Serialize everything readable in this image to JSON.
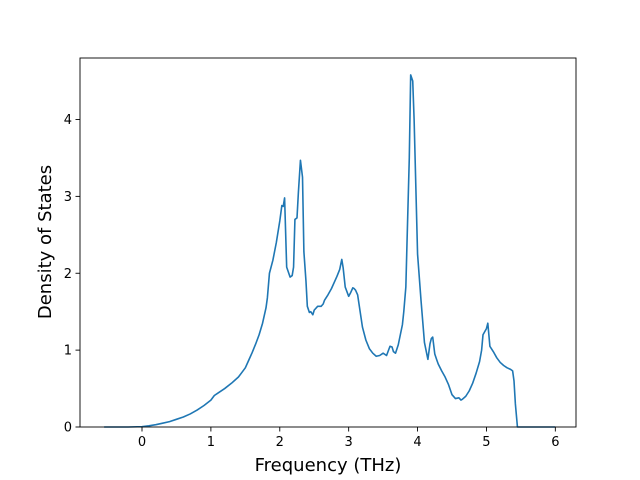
{
  "chart_data": {
    "type": "line",
    "xlabel": "Frequency (THz)",
    "ylabel": "Density of States",
    "xlim": [
      -0.9,
      6.3
    ],
    "ylim": [
      0,
      4.8
    ],
    "x_ticks": [
      0,
      1,
      2,
      3,
      4,
      5,
      6
    ],
    "y_ticks": [
      0,
      1,
      2,
      3,
      4
    ],
    "grid": false,
    "legend": "none",
    "line_color": "#1f77b4",
    "series": [
      {
        "x": [
          -0.55,
          -0.2,
          0.0,
          0.1,
          0.2,
          0.3,
          0.4,
          0.5,
          0.6,
          0.7,
          0.8,
          0.9,
          1.0,
          1.05,
          1.1,
          1.2,
          1.3,
          1.4,
          1.45,
          1.5,
          1.55,
          1.6,
          1.65,
          1.7,
          1.75,
          1.8,
          1.82,
          1.85,
          1.9,
          1.95,
          2.0,
          2.03,
          2.05,
          2.07,
          2.1,
          2.15,
          2.18,
          2.2,
          2.22,
          2.25,
          2.27,
          2.3,
          2.33,
          2.35,
          2.38,
          2.4,
          2.43,
          2.45,
          2.48,
          2.5,
          2.55,
          2.6,
          2.63,
          2.65,
          2.7,
          2.75,
          2.8,
          2.83,
          2.87,
          2.9,
          2.92,
          2.95,
          3.0,
          3.03,
          3.06,
          3.08,
          3.1,
          3.13,
          3.15,
          3.18,
          3.2,
          3.25,
          3.3,
          3.35,
          3.4,
          3.45,
          3.5,
          3.55,
          3.6,
          3.63,
          3.65,
          3.68,
          3.72,
          3.75,
          3.78,
          3.8,
          3.83,
          3.85,
          3.88,
          3.9,
          3.93,
          3.95,
          4.0,
          4.05,
          4.1,
          4.15,
          4.18,
          4.2,
          4.22,
          4.25,
          4.28,
          4.3,
          4.35,
          4.4,
          4.45,
          4.5,
          4.55,
          4.6,
          4.63,
          4.65,
          4.7,
          4.75,
          4.8,
          4.85,
          4.9,
          4.93,
          4.95,
          5.0,
          5.02,
          5.05,
          5.1,
          5.15,
          5.2,
          5.25,
          5.3,
          5.35,
          5.38,
          5.4,
          5.42,
          5.45,
          5.5,
          6.0
        ],
        "y": [
          0.0,
          0.0,
          0.005,
          0.015,
          0.03,
          0.05,
          0.07,
          0.1,
          0.13,
          0.17,
          0.22,
          0.28,
          0.35,
          0.41,
          0.44,
          0.5,
          0.57,
          0.65,
          0.71,
          0.77,
          0.87,
          0.97,
          1.08,
          1.2,
          1.35,
          1.55,
          1.68,
          2.0,
          2.17,
          2.4,
          2.68,
          2.88,
          2.87,
          2.98,
          2.08,
          1.95,
          1.97,
          2.08,
          2.7,
          2.72,
          3.05,
          3.47,
          3.25,
          2.28,
          1.9,
          1.57,
          1.49,
          1.5,
          1.46,
          1.52,
          1.57,
          1.57,
          1.6,
          1.65,
          1.72,
          1.8,
          1.9,
          1.96,
          2.05,
          2.18,
          2.07,
          1.82,
          1.7,
          1.75,
          1.81,
          1.8,
          1.78,
          1.72,
          1.6,
          1.42,
          1.3,
          1.13,
          1.02,
          0.96,
          0.92,
          0.93,
          0.96,
          0.93,
          1.05,
          1.04,
          0.98,
          0.96,
          1.07,
          1.2,
          1.33,
          1.5,
          1.82,
          2.5,
          3.5,
          4.58,
          4.5,
          4.0,
          2.25,
          1.65,
          1.1,
          0.88,
          1.08,
          1.15,
          1.17,
          0.95,
          0.87,
          0.82,
          0.73,
          0.65,
          0.55,
          0.42,
          0.37,
          0.38,
          0.35,
          0.36,
          0.4,
          0.47,
          0.57,
          0.7,
          0.85,
          1.0,
          1.2,
          1.28,
          1.35,
          1.05,
          0.98,
          0.9,
          0.84,
          0.8,
          0.77,
          0.75,
          0.73,
          0.6,
          0.3,
          0.0,
          0.0,
          0.0
        ]
      }
    ]
  }
}
